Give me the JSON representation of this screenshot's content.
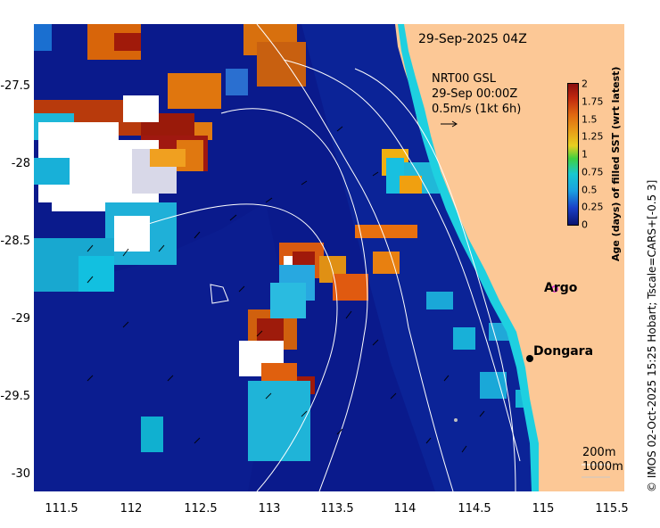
{
  "timestamp": "29-Sep-2025 04Z",
  "current_info": {
    "line1": "NRT00 GSL",
    "line2": "29-Sep 00:00Z",
    "line3": "0.5m/s (1kt 6h)"
  },
  "colorbar": {
    "title": "Age (days) of filled SST (wrt latest)",
    "ticks": [
      "2",
      "1.75",
      "1.5",
      "1.25",
      "1",
      "0.75",
      "0.5",
      "0.25",
      "0"
    ],
    "range": [
      0,
      2
    ]
  },
  "axes": {
    "x_ticks": [
      "111.5",
      "112",
      "112.5",
      "113",
      "113.5",
      "114",
      "114.5",
      "115",
      "115.5"
    ],
    "y_ticks": [
      "-27.5",
      "-28",
      "-28.5",
      "-29",
      "-29.5",
      "-30"
    ]
  },
  "places": {
    "argo": "Argo",
    "dongara": "Dongara"
  },
  "bathy_legend": {
    "line1": "200m",
    "line2": "1000m"
  },
  "credit": "© IMOS 02-Oct-2025 15:25 Hobart; Tscale=CARS+[-0.5 3]",
  "colors": {
    "land": "#fcc896",
    "ocean": "#0a1a8c",
    "argo_marker": "#e020e0"
  }
}
